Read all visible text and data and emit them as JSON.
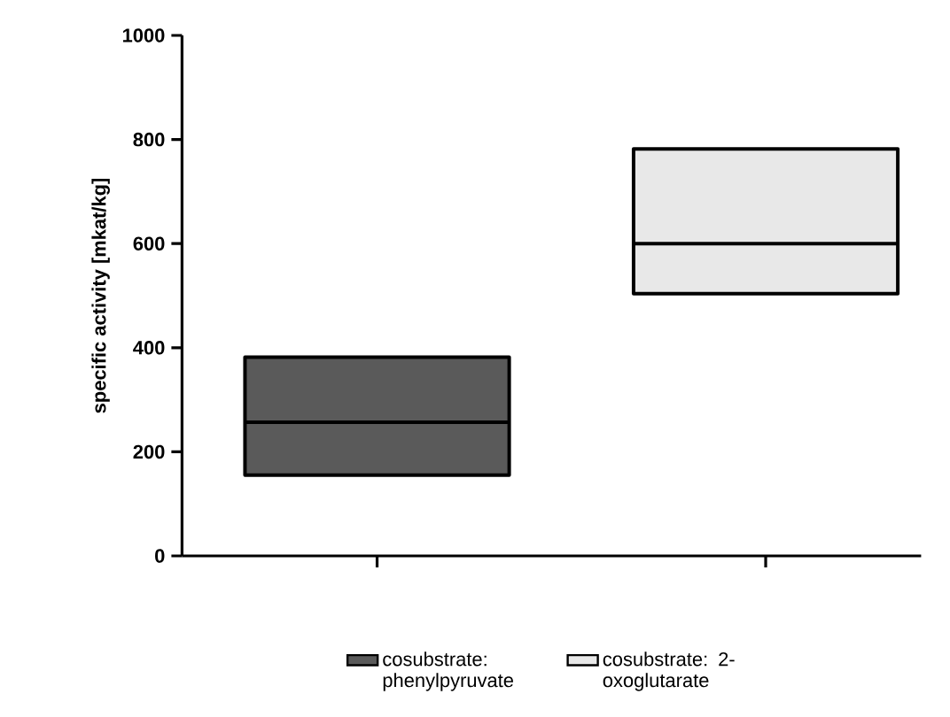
{
  "chart_data": {
    "type": "box",
    "ylabel": "specific activity [mkat/kg]",
    "categories": [
      null,
      null
    ],
    "series": [
      {
        "name": "cosubstrate: phenylpyruvate",
        "color": "#5a5a5a",
        "boxes": [
          {
            "low": 155,
            "q1": 155,
            "median": 257,
            "q3": 382,
            "high": 382
          },
          null
        ]
      },
      {
        "name": "cosubstrate: 2-oxoglutarate",
        "color": "#e8e8e8",
        "boxes": [
          null,
          {
            "low": 504,
            "q1": 504,
            "median": 600,
            "q3": 782,
            "high": 782
          }
        ]
      }
    ],
    "ylim": [
      0,
      1000
    ],
    "yticks": [
      0,
      200,
      400,
      600,
      800,
      1000
    ],
    "legend": "bottom"
  }
}
